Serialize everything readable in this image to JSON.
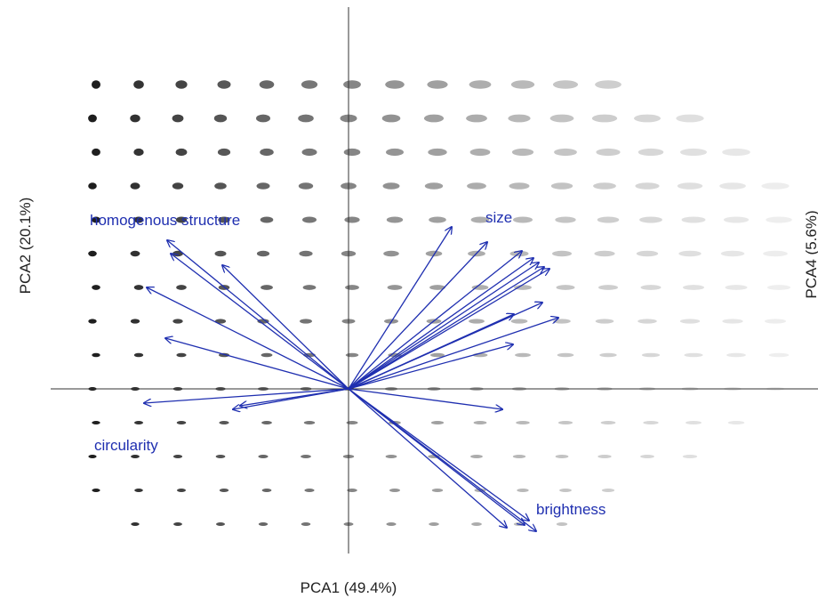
{
  "axes": {
    "x_label": "PCA1 (49.4%)",
    "y_label": "PCA2 (20.1%)",
    "y2_label": "PCA4 (5.6%)"
  },
  "vector_labels": {
    "homogenous_structure": "homogenous structure",
    "size": "size",
    "circularity": "circularity",
    "brightness": "brightness"
  }
}
